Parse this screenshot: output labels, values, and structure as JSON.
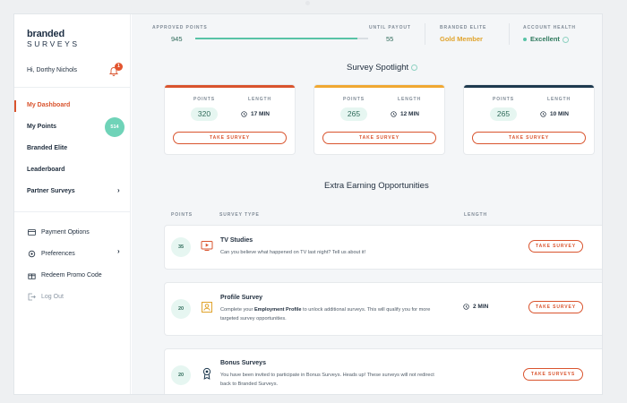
{
  "sidebar": {
    "logo_line1": "branded",
    "logo_line2": "SURVEYS",
    "greeting": "Hi, Dorthy Nichols",
    "notification_count": "1",
    "nav": [
      {
        "label": "My Dashboard"
      },
      {
        "label": "My Points",
        "badge": "514"
      },
      {
        "label": "Branded Elite"
      },
      {
        "label": "Leaderboard"
      },
      {
        "label": "Partner Surveys"
      }
    ],
    "secondary": [
      {
        "label": "Payment Options",
        "icon": "credit-card-icon"
      },
      {
        "label": "Preferences",
        "icon": "gear-icon"
      },
      {
        "label": "Redeem Promo Code",
        "icon": "gift-icon"
      },
      {
        "label": "Log Out",
        "icon": "logout-icon"
      }
    ]
  },
  "stats": {
    "approved_points_label": "APPROVED POINTS",
    "approved_points_value": "945",
    "until_payout_label": "UNTIL PAYOUT",
    "until_payout_value": "55",
    "progress": 0.94,
    "elite_label": "BRANDED ELITE",
    "elite_value": "Gold Member",
    "health_label": "ACCOUNT HEALTH",
    "health_value": "Excellent"
  },
  "spotlight": {
    "title": "Survey Spotlight",
    "cards": [
      {
        "points_label": "POINTS",
        "length_label": "LENGTH",
        "points": "320",
        "length": "17 MIN",
        "button": "TAKE SURVEY",
        "accent": "#d9542e"
      },
      {
        "points_label": "POINTS",
        "length_label": "LENGTH",
        "points": "265",
        "length": "12 MIN",
        "button": "TAKE SURVEY",
        "accent": "#f0a832"
      },
      {
        "points_label": "POINTS",
        "length_label": "LENGTH",
        "points": "265",
        "length": "10 MIN",
        "button": "TAKE SURVEY",
        "accent": "#1e3a4f"
      }
    ]
  },
  "extra": {
    "title": "Extra Earning Opportunities",
    "col_points": "POINTS",
    "col_type": "SURVEY TYPE",
    "col_length": "LENGTH",
    "rows": [
      {
        "points": "35",
        "title": "TV Studies",
        "desc": "Can you believe what happened on TV last night? Tell us about it!",
        "length": "",
        "button": "TAKE SURVEY",
        "icon": "tv-icon"
      },
      {
        "points": "20",
        "title": "Profile Survey",
        "desc_pre": "Complete your ",
        "desc_bold": "Employment Profile",
        "desc_post": " to unlock additional surveys. This will qualify you for more targeted survey opportunities.",
        "length": "2 MIN",
        "button": "TAKE SURVEY",
        "icon": "profile-icon"
      },
      {
        "points": "20",
        "title": "Bonus Surveys",
        "desc": "You have been invited to participate in Bonus Surveys. Heads up! These surveys will not redirect back to Branded Surveys.",
        "length": "",
        "button": "TAKE SURVEYS",
        "icon": "badge-icon"
      }
    ]
  },
  "colors": {
    "accent": "#d9542e",
    "teal": "#58c3a6",
    "gold": "#e0a32c",
    "navy": "#1e3a4f"
  }
}
